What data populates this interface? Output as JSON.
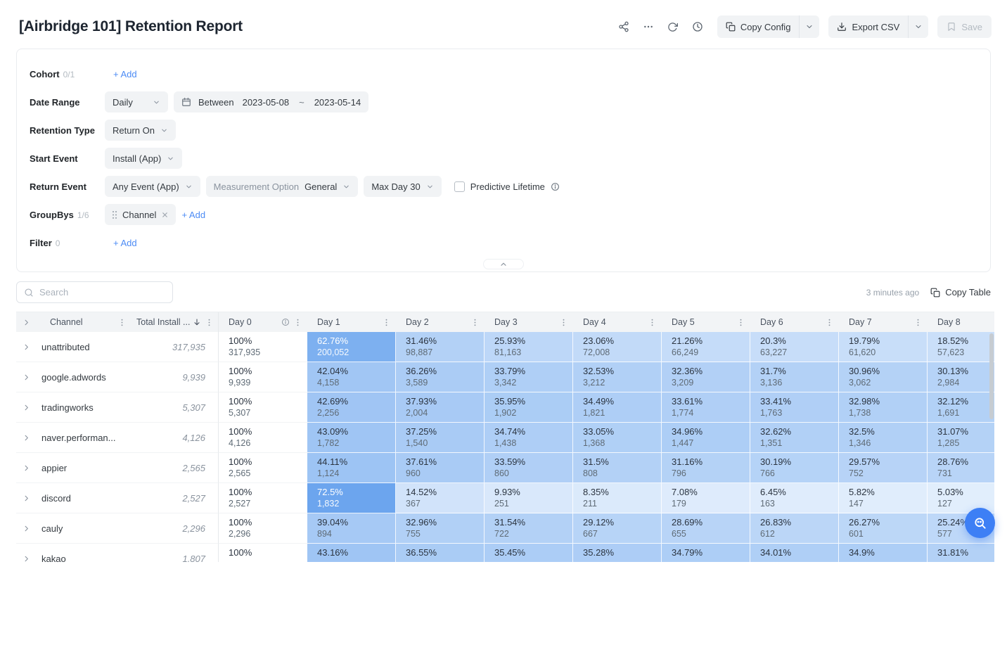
{
  "page": {
    "title": "[Airbridge 101] Retention Report"
  },
  "topbar": {
    "copy_config": "Copy Config",
    "export_csv": "Export CSV",
    "save": "Save"
  },
  "filters": {
    "cohort": {
      "label": "Cohort",
      "count": "0/1",
      "add_label": "+ Add"
    },
    "date_range": {
      "label": "Date Range",
      "granularity": "Daily",
      "mode": "Between",
      "start": "2023-05-08",
      "separator": "~",
      "end": "2023-05-14"
    },
    "retention_type": {
      "label": "Retention Type",
      "value": "Return On"
    },
    "start_event": {
      "label": "Start Event",
      "value": "Install (App)"
    },
    "return_event": {
      "label": "Return Event",
      "event": "Any Event (App)",
      "measurement_label": "Measurement Option",
      "measurement_value": "General",
      "max_day": "Max Day 30",
      "predictive_label": "Predictive Lifetime"
    },
    "groupbys": {
      "label": "GroupBys",
      "count": "1/6",
      "chip": "Channel",
      "add_label": "+ Add"
    },
    "filter": {
      "label": "Filter",
      "count": "0",
      "add_label": "+ Add"
    }
  },
  "toolbar": {
    "search_placeholder": "Search",
    "updated": "3 minutes ago",
    "copy_table": "Copy Table"
  },
  "table": {
    "channel_column": "Channel",
    "total_column": "Total Install ...",
    "day_columns": [
      "Day 0",
      "Day 1",
      "Day 2",
      "Day 3",
      "Day 4",
      "Day 5",
      "Day 6",
      "Day 7",
      "Day 8"
    ],
    "rows": [
      {
        "channel": "unattributed",
        "total": "317,935",
        "cells": [
          [
            "100%",
            "317,935"
          ],
          [
            "62.76%",
            "200,052"
          ],
          [
            "31.46%",
            "98,887"
          ],
          [
            "25.93%",
            "81,163"
          ],
          [
            "23.06%",
            "72,008"
          ],
          [
            "21.26%",
            "66,249"
          ],
          [
            "20.3%",
            "63,227"
          ],
          [
            "19.79%",
            "61,620"
          ],
          [
            "18.52%",
            "57,623"
          ]
        ]
      },
      {
        "channel": "google.adwords",
        "total": "9,939",
        "cells": [
          [
            "100%",
            "9,939"
          ],
          [
            "42.04%",
            "4,158"
          ],
          [
            "36.26%",
            "3,589"
          ],
          [
            "33.79%",
            "3,342"
          ],
          [
            "32.53%",
            "3,212"
          ],
          [
            "32.36%",
            "3,209"
          ],
          [
            "31.7%",
            "3,136"
          ],
          [
            "30.96%",
            "3,062"
          ],
          [
            "30.13%",
            "2,984"
          ]
        ]
      },
      {
        "channel": "tradingworks",
        "total": "5,307",
        "cells": [
          [
            "100%",
            "5,307"
          ],
          [
            "42.69%",
            "2,256"
          ],
          [
            "37.93%",
            "2,004"
          ],
          [
            "35.95%",
            "1,902"
          ],
          [
            "34.49%",
            "1,821"
          ],
          [
            "33.61%",
            "1,774"
          ],
          [
            "33.41%",
            "1,763"
          ],
          [
            "32.98%",
            "1,738"
          ],
          [
            "32.12%",
            "1,691"
          ]
        ]
      },
      {
        "channel": "naver.performan...",
        "total": "4,126",
        "cells": [
          [
            "100%",
            "4,126"
          ],
          [
            "43.09%",
            "1,782"
          ],
          [
            "37.25%",
            "1,540"
          ],
          [
            "34.74%",
            "1,438"
          ],
          [
            "33.05%",
            "1,368"
          ],
          [
            "34.96%",
            "1,447"
          ],
          [
            "32.62%",
            "1,351"
          ],
          [
            "32.5%",
            "1,346"
          ],
          [
            "31.07%",
            "1,285"
          ]
        ]
      },
      {
        "channel": "appier",
        "total": "2,565",
        "cells": [
          [
            "100%",
            "2,565"
          ],
          [
            "44.11%",
            "1,124"
          ],
          [
            "37.61%",
            "960"
          ],
          [
            "33.59%",
            "860"
          ],
          [
            "31.5%",
            "808"
          ],
          [
            "31.16%",
            "796"
          ],
          [
            "30.19%",
            "766"
          ],
          [
            "29.57%",
            "752"
          ],
          [
            "28.76%",
            "731"
          ]
        ]
      },
      {
        "channel": "discord",
        "total": "2,527",
        "cells": [
          [
            "100%",
            "2,527"
          ],
          [
            "72.5%",
            "1,832"
          ],
          [
            "14.52%",
            "367"
          ],
          [
            "9.93%",
            "251"
          ],
          [
            "8.35%",
            "211"
          ],
          [
            "7.08%",
            "179"
          ],
          [
            "6.45%",
            "163"
          ],
          [
            "5.82%",
            "147"
          ],
          [
            "5.03%",
            "127"
          ]
        ]
      },
      {
        "channel": "cauly",
        "total": "2,296",
        "cells": [
          [
            "100%",
            "2,296"
          ],
          [
            "39.04%",
            "894"
          ],
          [
            "32.96%",
            "755"
          ],
          [
            "31.54%",
            "722"
          ],
          [
            "29.12%",
            "667"
          ],
          [
            "28.69%",
            "655"
          ],
          [
            "26.83%",
            "612"
          ],
          [
            "26.27%",
            "601"
          ],
          [
            "25.24%",
            "577"
          ]
        ]
      },
      {
        "channel": "kakao",
        "total": "1,807",
        "cells": [
          [
            "100%",
            ""
          ],
          [
            "43.16%",
            ""
          ],
          [
            "36.55%",
            ""
          ],
          [
            "35.45%",
            ""
          ],
          [
            "35.28%",
            ""
          ],
          [
            "34.79%",
            ""
          ],
          [
            "34.01%",
            ""
          ],
          [
            "34.9%",
            ""
          ],
          [
            "31.81%",
            ""
          ]
        ]
      }
    ]
  },
  "icons": {
    "share": "share-icon",
    "more": "more-icon",
    "refresh": "refresh-icon",
    "history": "history-icon",
    "copy": "copy-icon",
    "download": "download-icon",
    "save": "bookmark-icon",
    "search": "search-icon",
    "calendar": "calendar-icon",
    "info": "info-icon",
    "kebab": "kebab-menu-icon",
    "sort": "sort-desc-icon",
    "close": "close-icon",
    "drag": "drag-handle-icon",
    "expander": "chevron-right-icon",
    "collapse": "chevron-up-icon",
    "fab": "magnifier-icon"
  },
  "colors": {
    "accent_blue": "#3d7ff5",
    "heat_low": "#eaf3fd",
    "heat_high": "#3c88e8",
    "add_link_blue": "#4c8bf5"
  }
}
